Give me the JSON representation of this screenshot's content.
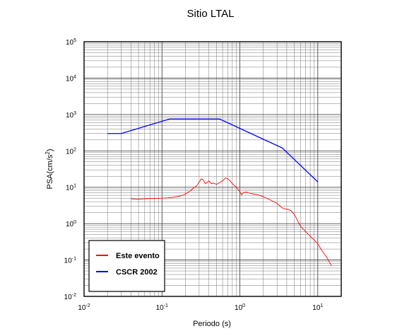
{
  "chart_data": {
    "type": "line",
    "title": "Sitio LTAL",
    "xlabel": "Periodo (s)",
    "ylabel": "PSA(cm/s²)",
    "ylabel_parts": {
      "base": "PSA(cm/s",
      "sup": "2",
      "end": ")"
    },
    "xscale": "log",
    "yscale": "log",
    "xlim": [
      0.01,
      20
    ],
    "ylim": [
      0.01,
      100000
    ],
    "grid": true,
    "legend_position": "bottom-left",
    "x_ticks": [
      {
        "base": "10",
        "exp": "-2"
      },
      {
        "base": "10",
        "exp": "-1"
      },
      {
        "base": "10",
        "exp": "0"
      },
      {
        "base": "10",
        "exp": "1"
      }
    ],
    "y_ticks": [
      {
        "base": "10",
        "exp": "-2"
      },
      {
        "base": "10",
        "exp": "-1"
      },
      {
        "base": "10",
        "exp": "0"
      },
      {
        "base": "10",
        "exp": "1"
      },
      {
        "base": "10",
        "exp": "2"
      },
      {
        "base": "10",
        "exp": "3"
      },
      {
        "base": "10",
        "exp": "4"
      },
      {
        "base": "10",
        "exp": "5"
      }
    ],
    "series": [
      {
        "name": "Este evento",
        "color": "#ff0000",
        "points": [
          [
            0.04,
            4.8
          ],
          [
            0.05,
            4.7
          ],
          [
            0.06,
            4.8
          ],
          [
            0.07,
            4.9
          ],
          [
            0.08,
            4.9
          ],
          [
            0.1,
            5.0
          ],
          [
            0.12,
            5.1
          ],
          [
            0.14,
            5.3
          ],
          [
            0.16,
            5.6
          ],
          [
            0.18,
            5.9
          ],
          [
            0.2,
            6.5
          ],
          [
            0.22,
            7.5
          ],
          [
            0.24,
            8.5
          ],
          [
            0.26,
            10.0
          ],
          [
            0.28,
            11.0
          ],
          [
            0.3,
            14.0
          ],
          [
            0.32,
            17.0
          ],
          [
            0.34,
            16.0
          ],
          [
            0.36,
            12.5
          ],
          [
            0.38,
            13.5
          ],
          [
            0.4,
            15.0
          ],
          [
            0.43,
            12.5
          ],
          [
            0.46,
            13.0
          ],
          [
            0.5,
            12.0
          ],
          [
            0.55,
            13.5
          ],
          [
            0.6,
            15.0
          ],
          [
            0.65,
            18.0
          ],
          [
            0.7,
            17.0
          ],
          [
            0.75,
            15.0
          ],
          [
            0.8,
            12.5
          ],
          [
            0.9,
            10.0
          ],
          [
            1.0,
            7.5
          ],
          [
            1.05,
            6.2
          ],
          [
            1.1,
            7.0
          ],
          [
            1.2,
            7.4
          ],
          [
            1.3,
            7.0
          ],
          [
            1.5,
            6.5
          ],
          [
            1.7,
            6.2
          ],
          [
            2.0,
            5.5
          ],
          [
            2.3,
            4.8
          ],
          [
            2.6,
            4.2
          ],
          [
            3.0,
            3.6
          ],
          [
            3.3,
            3.0
          ],
          [
            3.6,
            2.6
          ],
          [
            4.0,
            2.5
          ],
          [
            4.5,
            2.3
          ],
          [
            5.0,
            1.8
          ],
          [
            5.5,
            1.2
          ],
          [
            6.0,
            0.85
          ],
          [
            7.0,
            0.6
          ],
          [
            8.0,
            0.45
          ],
          [
            9.0,
            0.35
          ],
          [
            10.0,
            0.28
          ],
          [
            11.0,
            0.2
          ],
          [
            12.0,
            0.15
          ],
          [
            13.0,
            0.12
          ],
          [
            14.0,
            0.09
          ],
          [
            15.0,
            0.07
          ]
        ]
      },
      {
        "name": "CSCR 2002",
        "color": "#0000ff",
        "points": [
          [
            0.02,
            300
          ],
          [
            0.03,
            300
          ],
          [
            0.125,
            750
          ],
          [
            0.55,
            750
          ],
          [
            3.5,
            120
          ],
          [
            10.0,
            14
          ]
        ]
      }
    ]
  }
}
